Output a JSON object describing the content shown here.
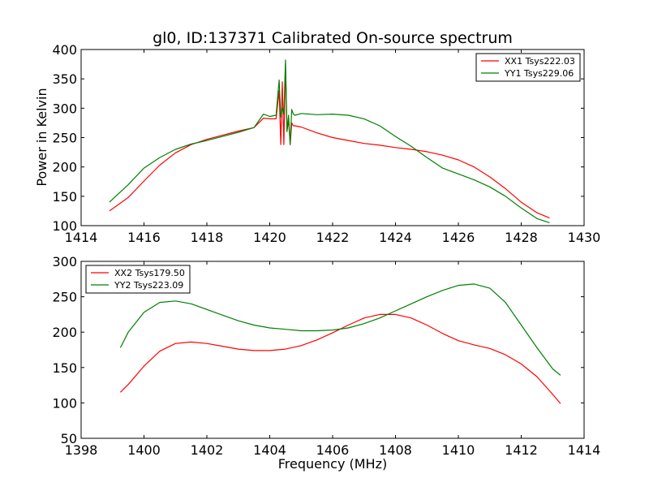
{
  "figure": {
    "title": "gl0, ID:137371 Calibrated On-source spectrum",
    "ylabel": "Power in Kelvin",
    "xlabel": "Frequency (MHz)"
  },
  "chart_data": [
    {
      "type": "line",
      "title": "gl0, ID:137371 Calibrated On-source spectrum",
      "ylabel": "Power in Kelvin",
      "xlim": [
        1414,
        1430
      ],
      "ylim": [
        100,
        400
      ],
      "xticks": [
        "1414",
        "1416",
        "1418",
        "1420",
        "1422",
        "1424",
        "1426",
        "1428",
        "1430"
      ],
      "yticks": [
        "100",
        "150",
        "200",
        "250",
        "300",
        "350",
        "400"
      ],
      "legend_position": "top-right",
      "series": [
        {
          "name": "XX1 Tsys222.03",
          "color": "#ff0000",
          "x": [
            1414.9,
            1415.5,
            1416,
            1416.5,
            1417,
            1417.5,
            1418,
            1418.5,
            1419,
            1419.5,
            1419.8,
            1420.0,
            1420.2,
            1420.3,
            1420.35,
            1420.4,
            1420.45,
            1420.5,
            1420.55,
            1420.6,
            1420.65,
            1420.7,
            1420.75,
            1420.8,
            1421,
            1421.5,
            1422,
            1422.5,
            1423,
            1423.5,
            1424,
            1424.5,
            1425,
            1425.5,
            1426,
            1426.5,
            1427,
            1427.5,
            1428,
            1428.5,
            1428.9
          ],
          "y": [
            125,
            148,
            176,
            203,
            224,
            238,
            247,
            254,
            261,
            267,
            283,
            282,
            282,
            330,
            238,
            345,
            238,
            375,
            262,
            280,
            238,
            275,
            270,
            270,
            268,
            258,
            250,
            245,
            240,
            237,
            233,
            230,
            226,
            220,
            212,
            200,
            183,
            163,
            140,
            122,
            113
          ]
        },
        {
          "name": "YY1 Tsys229.06",
          "color": "#008000",
          "x": [
            1414.9,
            1415.5,
            1416,
            1416.5,
            1417,
            1417.5,
            1418,
            1418.5,
            1419,
            1419.5,
            1419.8,
            1420.0,
            1420.2,
            1420.3,
            1420.35,
            1420.4,
            1420.45,
            1420.5,
            1420.55,
            1420.6,
            1420.65,
            1420.7,
            1420.75,
            1420.8,
            1421,
            1421.5,
            1422,
            1422.5,
            1423,
            1423.5,
            1424,
            1424.5,
            1425,
            1425.5,
            1426,
            1426.5,
            1427,
            1427.5,
            1428,
            1428.5,
            1428.9
          ],
          "y": [
            140,
            170,
            198,
            216,
            230,
            239,
            245,
            252,
            259,
            267,
            290,
            286,
            288,
            348,
            285,
            300,
            290,
            382,
            260,
            288,
            238,
            298,
            290,
            288,
            291,
            289,
            290,
            288,
            282,
            270,
            252,
            235,
            216,
            198,
            188,
            178,
            166,
            150,
            130,
            112,
            105
          ]
        }
      ]
    },
    {
      "type": "line",
      "title": "",
      "xlabel": "Frequency (MHz)",
      "xlim": [
        1398,
        1414
      ],
      "ylim": [
        50,
        300
      ],
      "xticks": [
        "1398",
        "1400",
        "1402",
        "1404",
        "1406",
        "1408",
        "1410",
        "1412",
        "1414"
      ],
      "yticks": [
        "50",
        "100",
        "150",
        "200",
        "250",
        "300"
      ],
      "legend_position": "top-left",
      "series": [
        {
          "name": "XX2 Tsys179.50",
          "color": "#ff0000",
          "x": [
            1399.25,
            1399.5,
            1400,
            1400.5,
            1401,
            1401.5,
            1402,
            1402.5,
            1403,
            1403.5,
            1404,
            1404.5,
            1405,
            1405.5,
            1406,
            1406.5,
            1407,
            1407.5,
            1408,
            1408.5,
            1409,
            1409.5,
            1410,
            1410.5,
            1411,
            1411.5,
            1412,
            1412.5,
            1413,
            1413.25
          ],
          "y": [
            115,
            126,
            152,
            173,
            184,
            186,
            184,
            180,
            176,
            174,
            174,
            176,
            181,
            189,
            199,
            210,
            220,
            225,
            225,
            220,
            210,
            198,
            188,
            182,
            177,
            168,
            155,
            137,
            112,
            99
          ]
        },
        {
          "name": "YY2 Tsys223.09",
          "color": "#008000",
          "x": [
            1399.25,
            1399.5,
            1400,
            1400.5,
            1401,
            1401.5,
            1402,
            1402.5,
            1403,
            1403.5,
            1404,
            1404.5,
            1405,
            1405.5,
            1406,
            1406.5,
            1407,
            1407.5,
            1408,
            1408.5,
            1409,
            1409.5,
            1410,
            1410.5,
            1411,
            1411.5,
            1412,
            1412.5,
            1413,
            1413.25
          ],
          "y": [
            178,
            200,
            228,
            242,
            244,
            240,
            232,
            224,
            216,
            210,
            206,
            204,
            202,
            202,
            203,
            206,
            212,
            220,
            230,
            240,
            250,
            259,
            266,
            268,
            262,
            242,
            210,
            178,
            148,
            139
          ]
        }
      ]
    }
  ]
}
